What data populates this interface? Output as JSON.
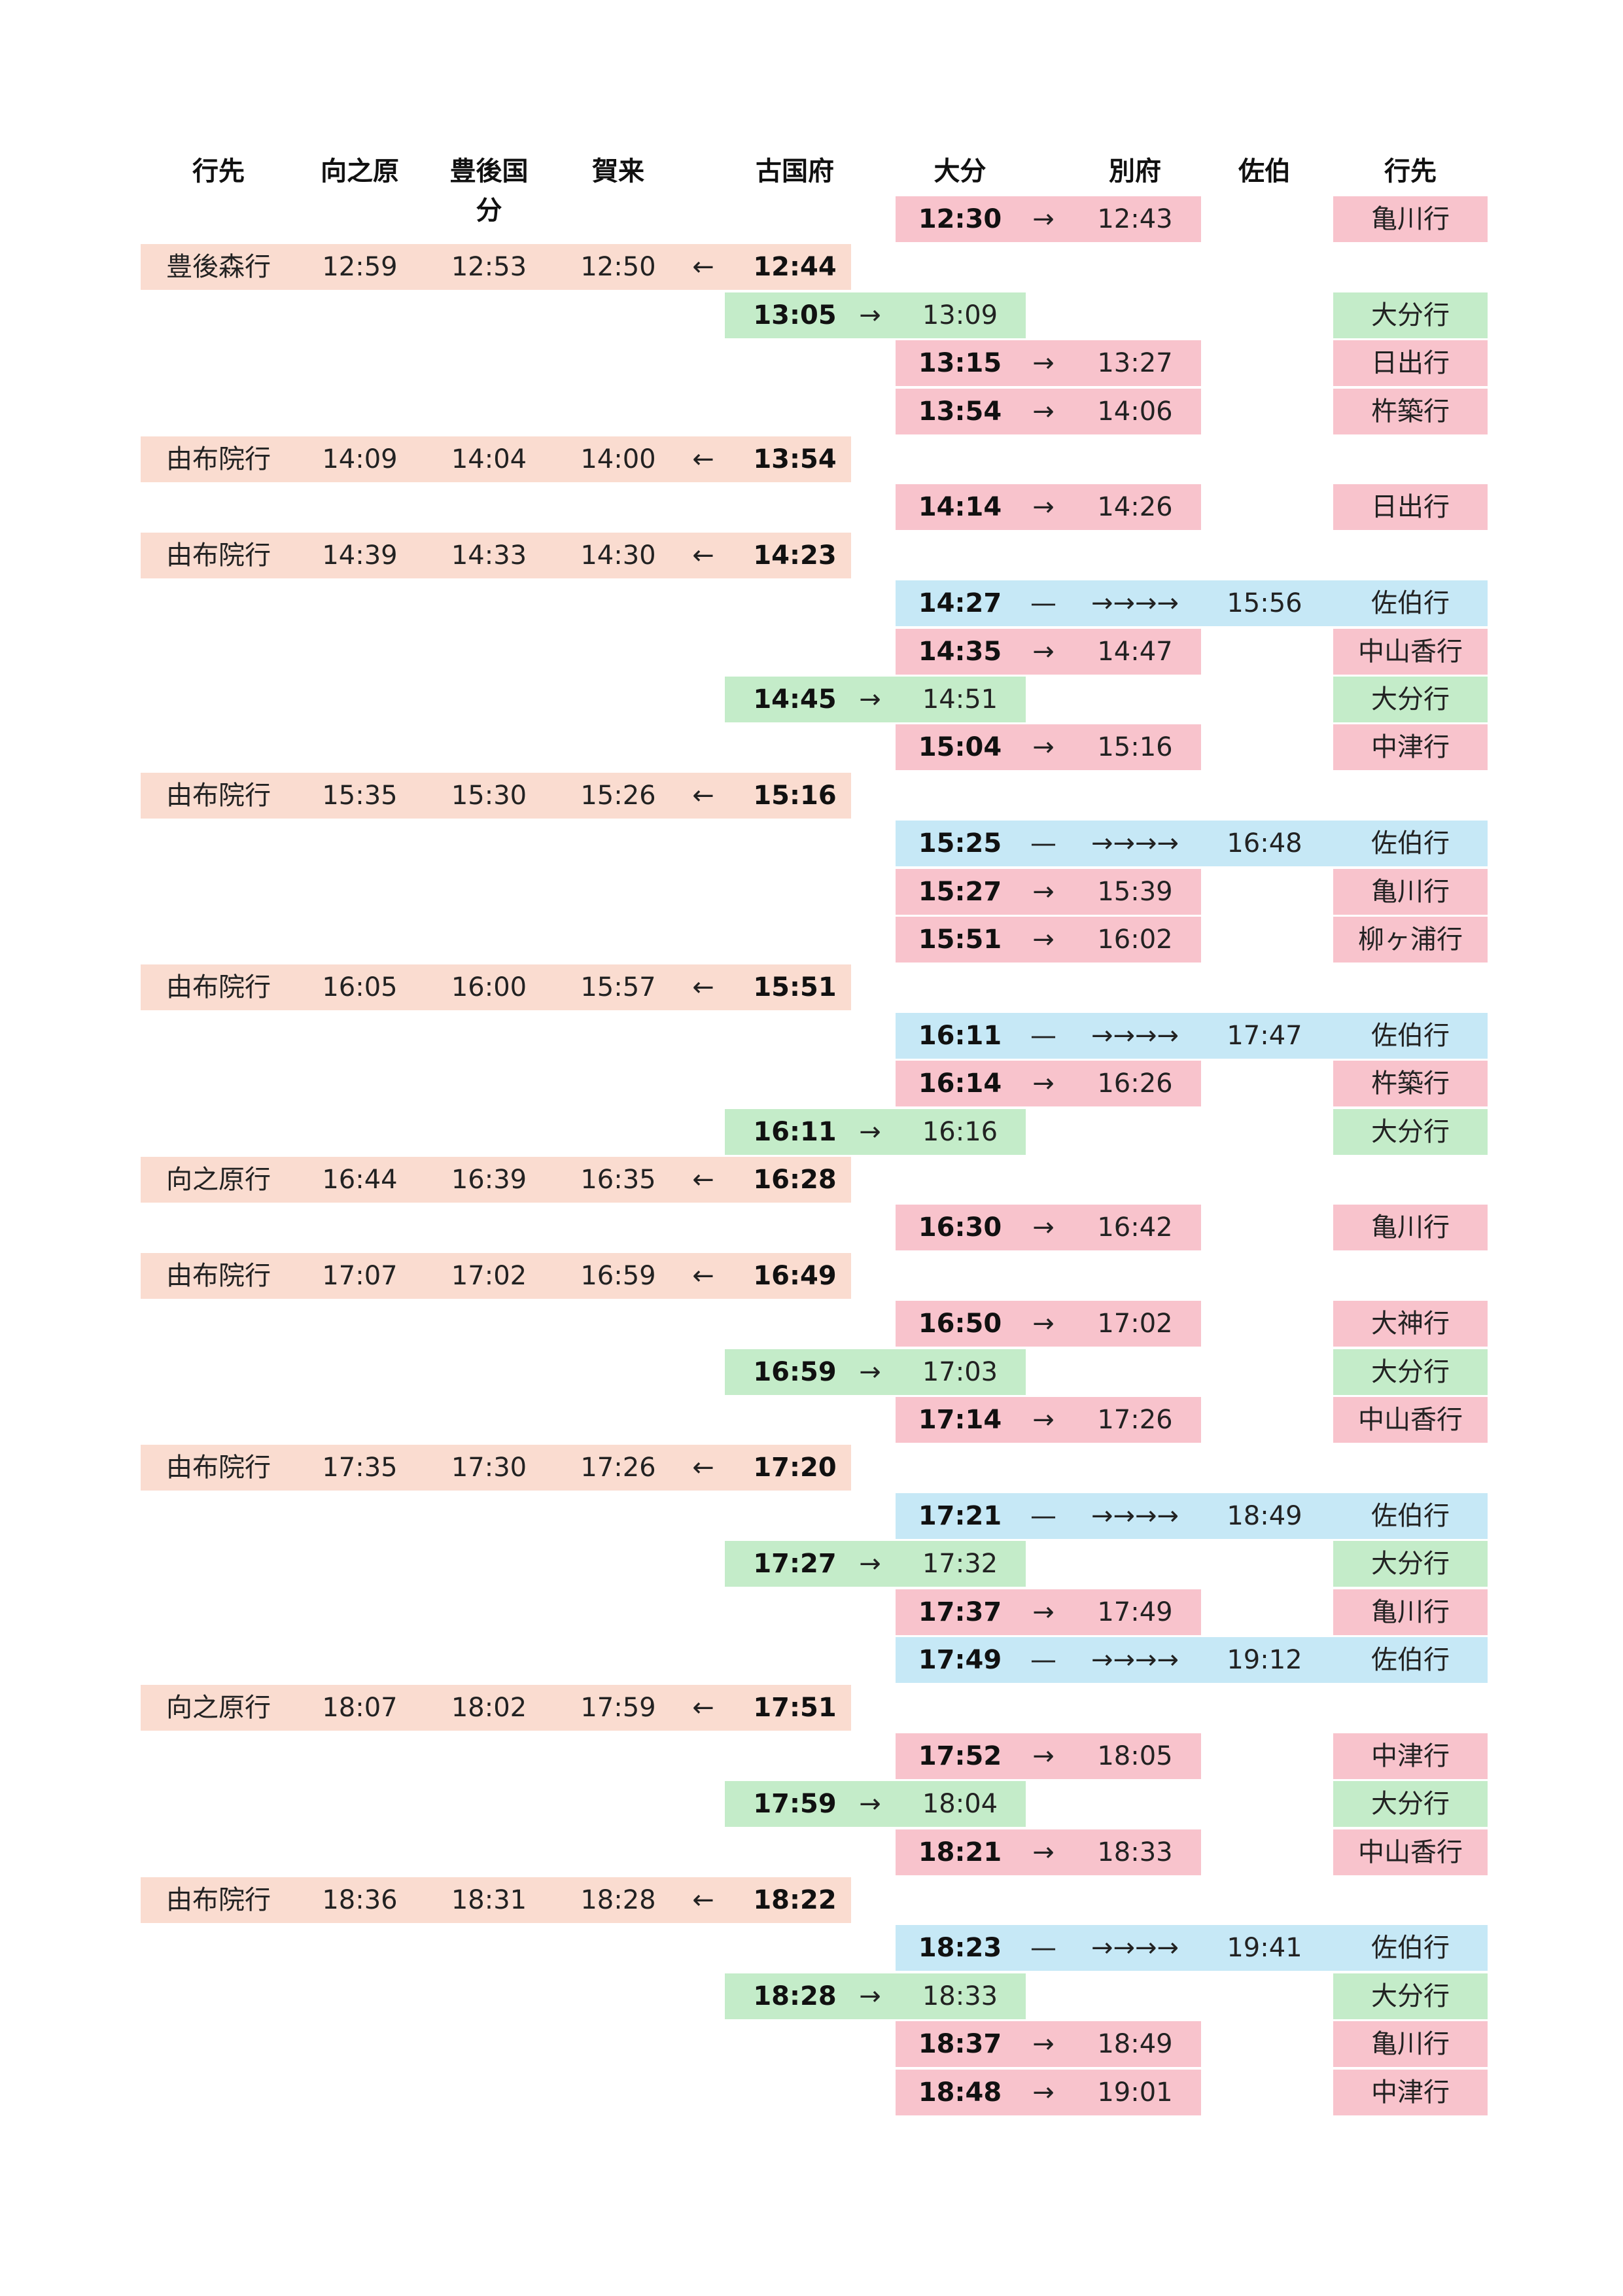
{
  "header": {
    "dest_left": "行先",
    "mukainoharu": "向之原",
    "bungokokubu": "豊後国分",
    "kaku": "賀来",
    "furugofu": "古国府",
    "oita": "大分",
    "beppu": "別府",
    "saiki": "佐伯",
    "dest_right": "行先"
  },
  "colors": {
    "westbound": "#fadcd0",
    "east_beppu": "#f8c3cc",
    "east_oita": "#c4ecc9",
    "east_saiki": "#c6e8f6"
  },
  "rows": [
    {
      "type": "east_beppu",
      "oita": "12:30",
      "arrow": "→",
      "beppu": "12:43",
      "dest": "亀川行"
    },
    {
      "type": "west",
      "dest": "豊後森行",
      "mukainoharu": "12:59",
      "bungokokubu": "12:53",
      "kaku": "12:50",
      "arrow": "←",
      "furugofu": "12:44"
    },
    {
      "type": "east_oita",
      "furugofu": "13:05",
      "arrow": "→",
      "oita": "13:09",
      "dest": "大分行"
    },
    {
      "type": "east_beppu",
      "oita": "13:15",
      "arrow": "→",
      "beppu": "13:27",
      "dest": "日出行"
    },
    {
      "type": "east_beppu",
      "oita": "13:54",
      "arrow": "→",
      "beppu": "14:06",
      "dest": "杵築行"
    },
    {
      "type": "west",
      "dest": "由布院行",
      "mukainoharu": "14:09",
      "bungokokubu": "14:04",
      "kaku": "14:00",
      "arrow": "←",
      "furugofu": "13:54"
    },
    {
      "type": "east_beppu",
      "oita": "14:14",
      "arrow": "→",
      "beppu": "14:26",
      "dest": "日出行"
    },
    {
      "type": "west",
      "dest": "由布院行",
      "mukainoharu": "14:39",
      "bungokokubu": "14:33",
      "kaku": "14:30",
      "arrow": "←",
      "furugofu": "14:23"
    },
    {
      "type": "east_saiki",
      "oita": "14:27",
      "dash": "—",
      "arrows": "→→→→",
      "saiki": "15:56",
      "dest": "佐伯行"
    },
    {
      "type": "east_beppu",
      "oita": "14:35",
      "arrow": "→",
      "beppu": "14:47",
      "dest": "中山香行"
    },
    {
      "type": "east_oita",
      "furugofu": "14:45",
      "arrow": "→",
      "oita": "14:51",
      "dest": "大分行"
    },
    {
      "type": "east_beppu",
      "oita": "15:04",
      "arrow": "→",
      "beppu": "15:16",
      "dest": "中津行"
    },
    {
      "type": "west",
      "dest": "由布院行",
      "mukainoharu": "15:35",
      "bungokokubu": "15:30",
      "kaku": "15:26",
      "arrow": "←",
      "furugofu": "15:16"
    },
    {
      "type": "east_saiki",
      "oita": "15:25",
      "dash": "—",
      "arrows": "→→→→",
      "saiki": "16:48",
      "dest": "佐伯行"
    },
    {
      "type": "east_beppu",
      "oita": "15:27",
      "arrow": "→",
      "beppu": "15:39",
      "dest": "亀川行"
    },
    {
      "type": "east_beppu",
      "oita": "15:51",
      "arrow": "→",
      "beppu": "16:02",
      "dest": "柳ヶ浦行"
    },
    {
      "type": "west",
      "dest": "由布院行",
      "mukainoharu": "16:05",
      "bungokokubu": "16:00",
      "kaku": "15:57",
      "arrow": "←",
      "furugofu": "15:51"
    },
    {
      "type": "east_saiki",
      "oita": "16:11",
      "dash": "—",
      "arrows": "→→→→",
      "saiki": "17:47",
      "dest": "佐伯行"
    },
    {
      "type": "east_beppu",
      "oita": "16:14",
      "arrow": "→",
      "beppu": "16:26",
      "dest": "杵築行"
    },
    {
      "type": "east_oita",
      "furugofu": "16:11",
      "arrow": "→",
      "oita": "16:16",
      "dest": "大分行"
    },
    {
      "type": "west",
      "dest": "向之原行",
      "mukainoharu": "16:44",
      "bungokokubu": "16:39",
      "kaku": "16:35",
      "arrow": "←",
      "furugofu": "16:28"
    },
    {
      "type": "east_beppu",
      "oita": "16:30",
      "arrow": "→",
      "beppu": "16:42",
      "dest": "亀川行"
    },
    {
      "type": "west",
      "dest": "由布院行",
      "mukainoharu": "17:07",
      "bungokokubu": "17:02",
      "kaku": "16:59",
      "arrow": "←",
      "furugofu": "16:49"
    },
    {
      "type": "east_beppu",
      "oita": "16:50",
      "arrow": "→",
      "beppu": "17:02",
      "dest": "大神行"
    },
    {
      "type": "east_oita",
      "furugofu": "16:59",
      "arrow": "→",
      "oita": "17:03",
      "dest": "大分行"
    },
    {
      "type": "east_beppu",
      "oita": "17:14",
      "arrow": "→",
      "beppu": "17:26",
      "dest": "中山香行"
    },
    {
      "type": "west",
      "dest": "由布院行",
      "mukainoharu": "17:35",
      "bungokokubu": "17:30",
      "kaku": "17:26",
      "arrow": "←",
      "furugofu": "17:20"
    },
    {
      "type": "east_saiki",
      "oita": "17:21",
      "dash": "—",
      "arrows": "→→→→",
      "saiki": "18:49",
      "dest": "佐伯行"
    },
    {
      "type": "east_oita",
      "furugofu": "17:27",
      "arrow": "→",
      "oita": "17:32",
      "dest": "大分行"
    },
    {
      "type": "east_beppu",
      "oita": "17:37",
      "arrow": "→",
      "beppu": "17:49",
      "dest": "亀川行"
    },
    {
      "type": "east_saiki",
      "oita": "17:49",
      "dash": "—",
      "arrows": "→→→→",
      "saiki": "19:12",
      "dest": "佐伯行"
    },
    {
      "type": "west",
      "dest": "向之原行",
      "mukainoharu": "18:07",
      "bungokokubu": "18:02",
      "kaku": "17:59",
      "arrow": "←",
      "furugofu": "17:51"
    },
    {
      "type": "east_beppu",
      "oita": "17:52",
      "arrow": "→",
      "beppu": "18:05",
      "dest": "中津行"
    },
    {
      "type": "east_oita",
      "furugofu": "17:59",
      "arrow": "→",
      "oita": "18:04",
      "dest": "大分行"
    },
    {
      "type": "east_beppu",
      "oita": "18:21",
      "arrow": "→",
      "beppu": "18:33",
      "dest": "中山香行"
    },
    {
      "type": "west",
      "dest": "由布院行",
      "mukainoharu": "18:36",
      "bungokokubu": "18:31",
      "kaku": "18:28",
      "arrow": "←",
      "furugofu": "18:22"
    },
    {
      "type": "east_saiki",
      "oita": "18:23",
      "dash": "—",
      "arrows": "→→→→",
      "saiki": "19:41",
      "dest": "佐伯行"
    },
    {
      "type": "east_oita",
      "furugofu": "18:28",
      "arrow": "→",
      "oita": "18:33",
      "dest": "大分行"
    },
    {
      "type": "east_beppu",
      "oita": "18:37",
      "arrow": "→",
      "beppu": "18:49",
      "dest": "亀川行"
    },
    {
      "type": "east_beppu",
      "oita": "18:48",
      "arrow": "→",
      "beppu": "19:01",
      "dest": "中津行"
    }
  ]
}
